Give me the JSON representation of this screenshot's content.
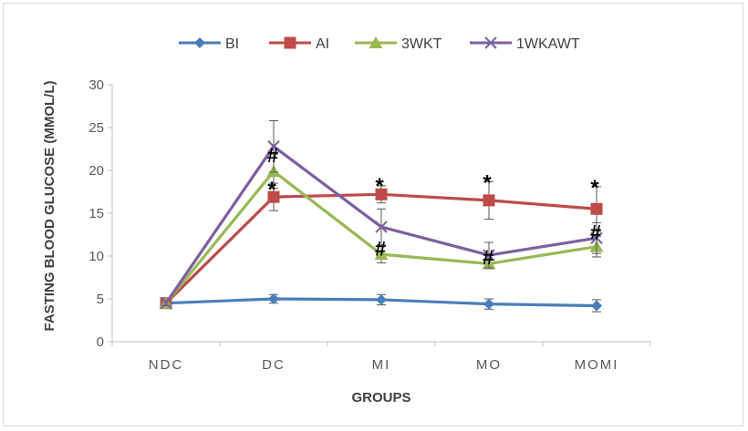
{
  "chart_data": {
    "type": "line",
    "title": "",
    "xlabel": "GROUPS",
    "ylabel": "FASTING BLOOD GLUCOSE (MMOL/L)",
    "categories": [
      "NDC",
      "DC",
      "MI",
      "MO",
      "MOMI"
    ],
    "ylim": [
      0,
      30
    ],
    "yticks": [
      0,
      5,
      10,
      15,
      20,
      25,
      30
    ],
    "grid": false,
    "legend_position": "top",
    "series": [
      {
        "name": "BI",
        "color": "#4a7ebb",
        "marker": "diamond",
        "values": [
          4.5,
          5.0,
          4.9,
          4.4,
          4.2
        ],
        "errors": [
          0.3,
          0.5,
          0.6,
          0.6,
          0.7
        ]
      },
      {
        "name": "AI",
        "color": "#be4b48",
        "marker": "square",
        "values": [
          4.5,
          16.9,
          17.2,
          16.5,
          15.5
        ],
        "errors": [
          0.3,
          1.6,
          1.0,
          2.2,
          2.6
        ]
      },
      {
        "name": "3WKT",
        "color": "#98b954",
        "marker": "triangle",
        "values": [
          4.5,
          19.9,
          10.2,
          9.1,
          11.1
        ],
        "errors": [
          0.3,
          2.0,
          1.0,
          0.6,
          1.2
        ]
      },
      {
        "name": "1WKAWT",
        "color": "#7d60a0",
        "marker": "x",
        "values": [
          4.5,
          22.8,
          13.4,
          10.1,
          12.1
        ],
        "errors": [
          0.3,
          3.0,
          2.1,
          1.5,
          1.8
        ]
      }
    ],
    "annotations": [
      {
        "text": "*",
        "category": "DC",
        "y": 18.2
      },
      {
        "text": "#",
        "category": "DC",
        "y": 21.8
      },
      {
        "text": "*",
        "category": "MI",
        "y": 18.6
      },
      {
        "text": "#",
        "category": "MI",
        "y": 10.9
      },
      {
        "text": "*",
        "category": "MO",
        "y": 19.0
      },
      {
        "text": "#",
        "category": "MO",
        "y": 9.9
      },
      {
        "text": "*",
        "category": "MOMI",
        "y": 18.4
      },
      {
        "text": "#",
        "category": "MOMI",
        "y": 12.8
      }
    ]
  }
}
